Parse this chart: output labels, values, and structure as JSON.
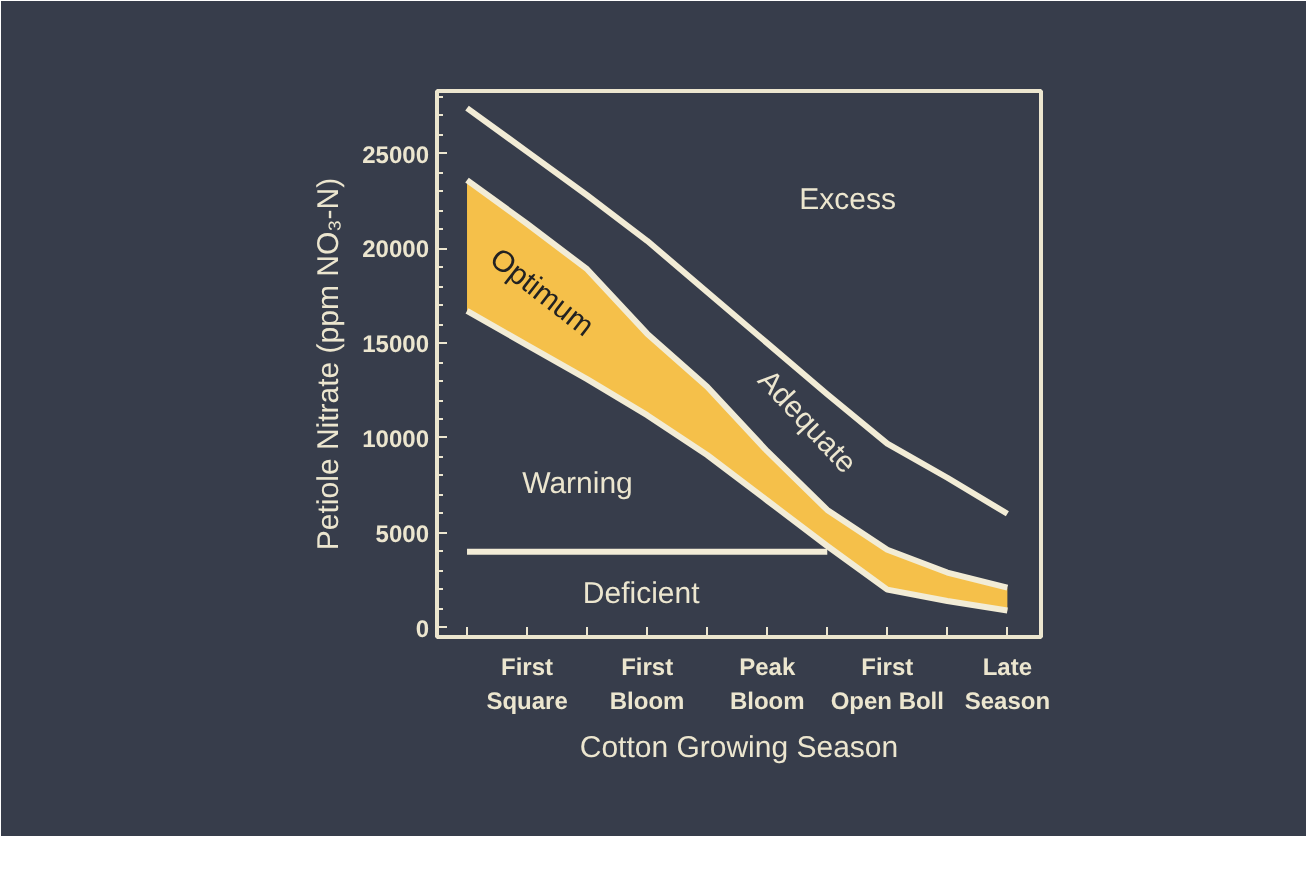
{
  "chart_data": {
    "type": "line",
    "xlabel": "Cotton Growing Season",
    "ylabel": "Petiole Nitrate (ppm NO₃-N)",
    "categories": [
      null,
      "First Square",
      null,
      "First Bloom",
      null,
      "Peak Bloom",
      null,
      "First Open Boll",
      null,
      "Late Season"
    ],
    "ylim": [
      -500,
      28300
    ],
    "yticks": [
      0,
      5000,
      10000,
      15000,
      20000,
      25000
    ],
    "series": [
      {
        "color": "#f2ecd6",
        "values": [
          27400,
          25100,
          22800,
          20400,
          17700,
          15000,
          12300,
          9700,
          7900,
          6000
        ]
      },
      {
        "color": "#f2ecd6",
        "values": [
          16700,
          14900,
          13100,
          11200,
          9100,
          6700,
          4300,
          2000,
          1400,
          900
        ]
      },
      {
        "type": "area",
        "color": "#f5c04a",
        "values": [
          23600,
          21300,
          18900,
          15500,
          12700,
          9300,
          6200,
          4100,
          2900,
          2100
        ]
      },
      {
        "color": "#f2ecd6",
        "values": [
          4000,
          4000,
          4000,
          4000,
          4000,
          4000,
          4000,
          null,
          null,
          null
        ]
      }
    ],
    "annotations": [
      "Excess",
      "Optimum",
      "Adequate",
      "Warning",
      "Deficient"
    ]
  }
}
